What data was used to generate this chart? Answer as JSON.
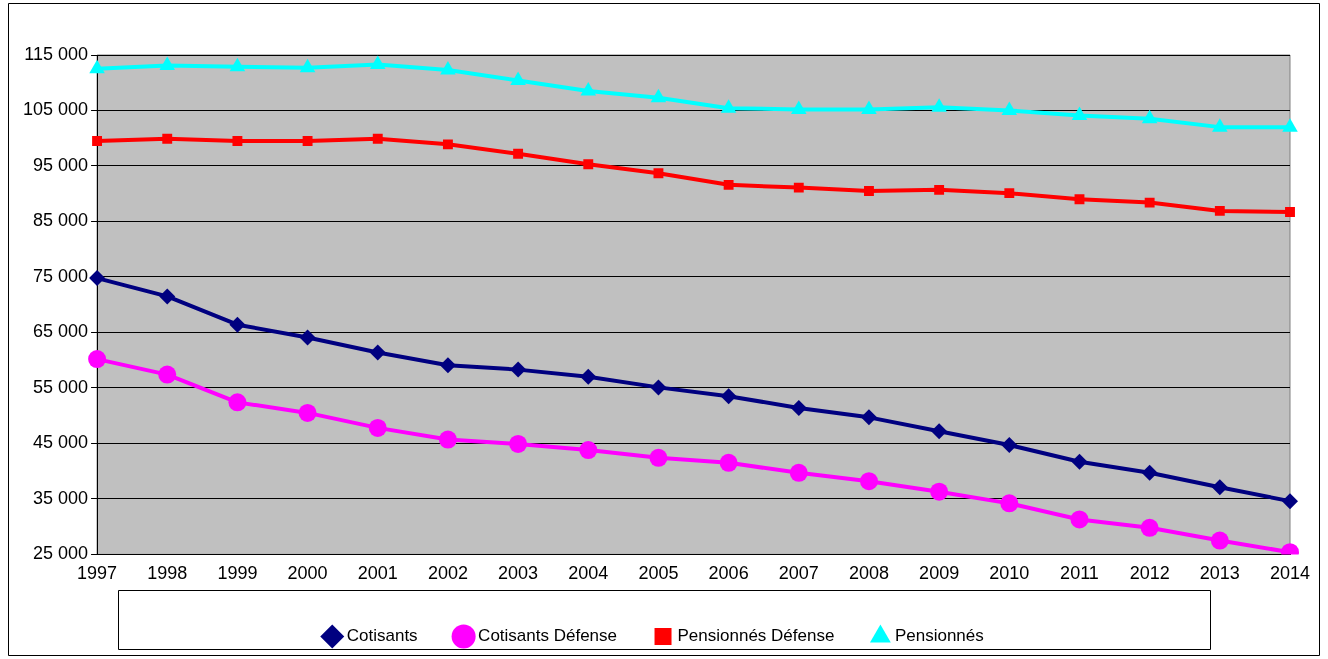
{
  "chart_data": {
    "type": "line",
    "categories": [
      "1997",
      "1998",
      "1999",
      "2000",
      "2001",
      "2002",
      "2003",
      "2004",
      "2005",
      "2006",
      "2007",
      "2008",
      "2009",
      "2010",
      "2011",
      "2012",
      "2013",
      "2014"
    ],
    "series": [
      {
        "name": "Cotisants",
        "color": "#000080",
        "marker": "diamond",
        "values": [
          74800,
          71500,
          66400,
          64100,
          61400,
          59100,
          58300,
          57000,
          55100,
          53500,
          51400,
          49700,
          47200,
          44700,
          41700,
          39700,
          37100,
          34600
        ]
      },
      {
        "name": "Cotisants Défense",
        "color": "#ff00ff",
        "marker": "circle",
        "values": [
          60200,
          57400,
          52400,
          50500,
          47800,
          45700,
          44900,
          43800,
          42400,
          41500,
          39700,
          38200,
          36300,
          34200,
          31300,
          29800,
          27500,
          25400
        ]
      },
      {
        "name": "Pensionnés Défense",
        "color": "#ff0000",
        "marker": "square",
        "values": [
          99500,
          99900,
          99500,
          99500,
          99900,
          98900,
          97200,
          95300,
          93700,
          91600,
          91100,
          90500,
          90700,
          90100,
          89000,
          88400,
          86900,
          86700
        ]
      },
      {
        "name": "Pensionnés",
        "color": "#00ffff",
        "marker": "triangle",
        "values": [
          112500,
          113100,
          112900,
          112700,
          113300,
          112300,
          110400,
          108500,
          107300,
          105400,
          105200,
          105200,
          105600,
          105000,
          104100,
          103500,
          102000,
          102000
        ]
      }
    ],
    "ylim": [
      25000,
      115000
    ],
    "yticks": [
      {
        "value": 25000,
        "label": "25 000"
      },
      {
        "value": 35000,
        "label": "35 000"
      },
      {
        "value": 45000,
        "label": "45 000"
      },
      {
        "value": 55000,
        "label": "55 000"
      },
      {
        "value": 65000,
        "label": "65 000"
      },
      {
        "value": 75000,
        "label": "75 000"
      },
      {
        "value": 85000,
        "label": "85 000"
      },
      {
        "value": 95000,
        "label": "95 000"
      },
      {
        "value": 105000,
        "label": "105 000"
      },
      {
        "value": 115000,
        "label": "115 000"
      }
    ],
    "grid": "y",
    "legend": "bottom",
    "line_style": "solid"
  }
}
